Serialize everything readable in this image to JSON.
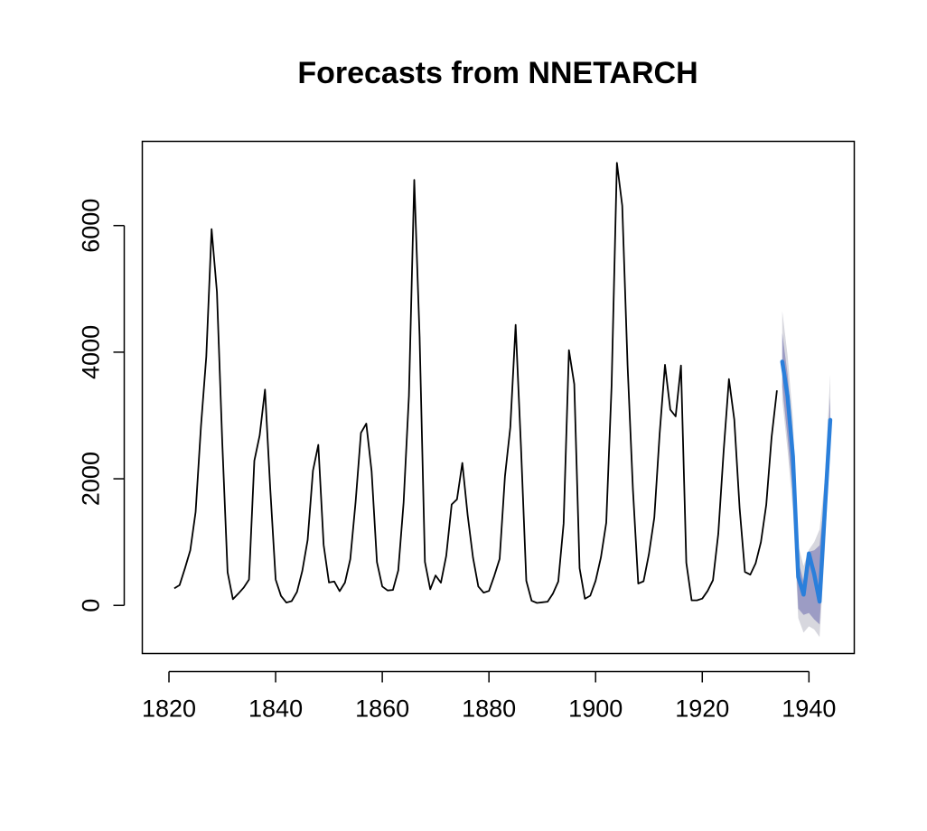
{
  "chart_data": {
    "type": "line",
    "title": "Forecasts from NNETARCH",
    "xlabel": "",
    "ylabel": "",
    "xlim": [
      1815,
      1948.5
    ],
    "ylim": [
      -760,
      7330
    ],
    "x_ticks": [
      1820,
      1840,
      1860,
      1880,
      1900,
      1920,
      1940
    ],
    "x_tick_labels": [
      "1820",
      "1840",
      "1860",
      "1880",
      "1900",
      "1920",
      "1940"
    ],
    "y_ticks": [
      0,
      2000,
      4000,
      6000
    ],
    "y_tick_labels": [
      "0",
      "2000",
      "4000",
      "6000"
    ],
    "colors": {
      "history": "#000000",
      "forecast": "#2A7FDB",
      "band95": "#D7D7DE",
      "band80": "#9C9CC4"
    },
    "series": [
      {
        "role": "history",
        "x": [
          1821,
          1822,
          1823,
          1824,
          1825,
          1826,
          1827,
          1828,
          1829,
          1830,
          1831,
          1832,
          1833,
          1834,
          1835,
          1836,
          1837,
          1838,
          1839,
          1840,
          1841,
          1842,
          1843,
          1844,
          1845,
          1846,
          1847,
          1848,
          1849,
          1850,
          1851,
          1852,
          1853,
          1854,
          1855,
          1856,
          1857,
          1858,
          1859,
          1860,
          1861,
          1862,
          1863,
          1864,
          1865,
          1866,
          1867,
          1868,
          1869,
          1870,
          1871,
          1872,
          1873,
          1874,
          1875,
          1876,
          1877,
          1878,
          1879,
          1880,
          1881,
          1882,
          1883,
          1884,
          1885,
          1886,
          1887,
          1888,
          1889,
          1890,
          1891,
          1892,
          1893,
          1894,
          1895,
          1896,
          1897,
          1898,
          1899,
          1900,
          1901,
          1902,
          1903,
          1904,
          1905,
          1906,
          1907,
          1908,
          1909,
          1910,
          1911,
          1912,
          1913,
          1914,
          1915,
          1916,
          1917,
          1918,
          1919,
          1920,
          1921,
          1922,
          1923,
          1924,
          1925,
          1926,
          1927,
          1928,
          1929,
          1930,
          1931,
          1932,
          1933,
          1934
        ],
        "y": [
          269,
          321,
          585,
          871,
          1475,
          2821,
          3928,
          5943,
          4950,
          2577,
          523,
          98,
          184,
          279,
          409,
          2285,
          2685,
          3409,
          1824,
          409,
          151,
          45,
          68,
          213,
          546,
          1033,
          2129,
          2536,
          957,
          361,
          377,
          225,
          360,
          731,
          1638,
          2725,
          2871,
          2119,
          684,
          299,
          236,
          245,
          552,
          1623,
          3311,
          6721,
          4254,
          687,
          255,
          473,
          358,
          784,
          1594,
          1676,
          2251,
          1426,
          756,
          299,
          201,
          229,
          469,
          736,
          2042,
          2811,
          4431,
          2511,
          389,
          73,
          39,
          49,
          59,
          188,
          377,
          1292,
          4031,
          3495,
          587,
          105,
          153,
          387,
          758,
          1307,
          3465,
          6991,
          6313,
          3794,
          1836,
          345,
          382,
          808,
          1388,
          2713,
          3800,
          3091,
          2985,
          3790,
          674,
          81,
          80,
          108,
          229,
          399,
          1132,
          2432,
          3574,
          2935,
          1537,
          529,
          485,
          662,
          1000,
          1590,
          2657,
          3396
        ]
      },
      {
        "role": "forecast",
        "x": [
          1935,
          1936,
          1937,
          1938,
          1939,
          1940,
          1941,
          1942,
          1943,
          1944
        ],
        "y": [
          3850,
          3300,
          2350,
          450,
          170,
          820,
          490,
          60,
          1520,
          2930
        ],
        "lo80": [
          3450,
          2650,
          1750,
          -50,
          -150,
          -120,
          -220,
          -300,
          1150,
          2700
        ],
        "hi80": [
          4300,
          3650,
          2650,
          700,
          380,
          850,
          870,
          950,
          1750,
          3300
        ],
        "lo95": [
          3250,
          2450,
          1500,
          -200,
          -430,
          -330,
          -380,
          -500,
          900,
          2550
        ],
        "hi95": [
          4650,
          3950,
          2950,
          950,
          620,
          880,
          1000,
          1200,
          2000,
          3650
        ]
      }
    ]
  }
}
